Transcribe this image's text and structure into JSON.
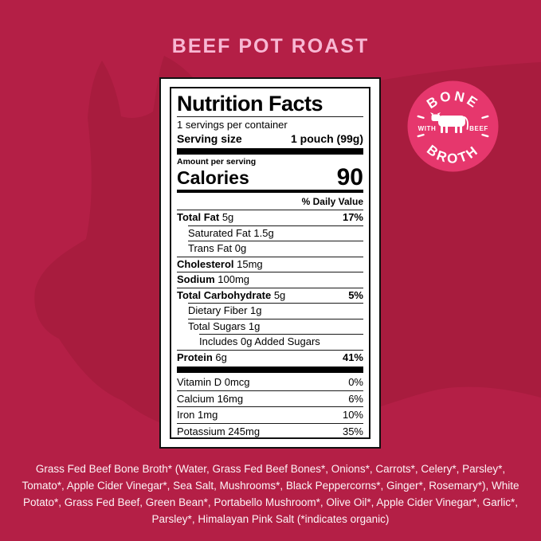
{
  "colors": {
    "background": "#b41f46",
    "silhouette": "#a81c3e",
    "badge_pink": "#e6376d",
    "title_pink": "#f8b7d3",
    "label_bg": "#ffffff",
    "label_ink": "#000000"
  },
  "header": {
    "title": "BEEF POT ROAST"
  },
  "badge": {
    "arc_top": "BONE",
    "arc_bottom": "BROTH",
    "left_word": "WITH",
    "right_word": "BEEF",
    "icon": "cow-icon"
  },
  "nutrition": {
    "title": "Nutrition Facts",
    "servings_per_container": "1 servings per container",
    "serving_size_label": "Serving size",
    "serving_size_value": "1 pouch (99g)",
    "amount_per_serving": "Amount per serving",
    "calories_label": "Calories",
    "calories_value": "90",
    "daily_value_header": "% Daily Value",
    "rows": [
      {
        "label": "Total Fat",
        "value": "5g",
        "dv": "17%",
        "bold": true,
        "indent": 0,
        "sep": 0
      },
      {
        "label": "Saturated Fat",
        "value": "1.5g",
        "dv": "",
        "bold": false,
        "indent": 1,
        "sep": 1
      },
      {
        "label": "Trans Fat",
        "value": "0g",
        "dv": "",
        "bold": false,
        "indent": 1,
        "sep": 1
      },
      {
        "label": "Cholesterol",
        "value": "15mg",
        "dv": "",
        "bold": true,
        "indent": 0,
        "sep": 0
      },
      {
        "label": "Sodium",
        "value": "100mg",
        "dv": "",
        "bold": true,
        "indent": 0,
        "sep": 0
      },
      {
        "label": "Total Carbohydrate",
        "value": "5g",
        "dv": "5%",
        "bold": true,
        "indent": 0,
        "sep": 0
      },
      {
        "label": "Dietary Fiber",
        "value": "1g",
        "dv": "",
        "bold": false,
        "indent": 1,
        "sep": 1
      },
      {
        "label": "Total Sugars",
        "value": "1g",
        "dv": "",
        "bold": false,
        "indent": 1,
        "sep": 1
      },
      {
        "label": "",
        "value": "Includes 0g Added Sugars",
        "dv": "",
        "bold": false,
        "indent": 2,
        "sep": 2
      },
      {
        "label": "Protein",
        "value": "6g",
        "dv": "41%",
        "bold": true,
        "indent": 0,
        "sep": 0
      }
    ],
    "micros": [
      {
        "label": "Vitamin D 0mcg",
        "dv": "0%",
        "sep": false
      },
      {
        "label": "Calcium 16mg",
        "dv": "6%",
        "sep": true
      },
      {
        "label": "Iron 1mg",
        "dv": "10%",
        "sep": true
      },
      {
        "label": "Potassium 245mg",
        "dv": "35%",
        "sep": true
      }
    ]
  },
  "ingredients": "Grass Fed Beef Bone Broth* (Water, Grass Fed Beef Bones*, Onions*, Carrots*, Celery*, Parsley*, Tomato*, Apple Cider Vinegar*, Sea Salt, Mushrooms*, Black Peppercorns*, Ginger*, Rosemary*), White Potato*, Grass Fed Beef, Green Bean*, Portabello Mushroom*, Olive Oil*, Apple Cider Vinegar*, Garlic*, Parsley*, Himalayan Pink Salt (*indicates organic)"
}
